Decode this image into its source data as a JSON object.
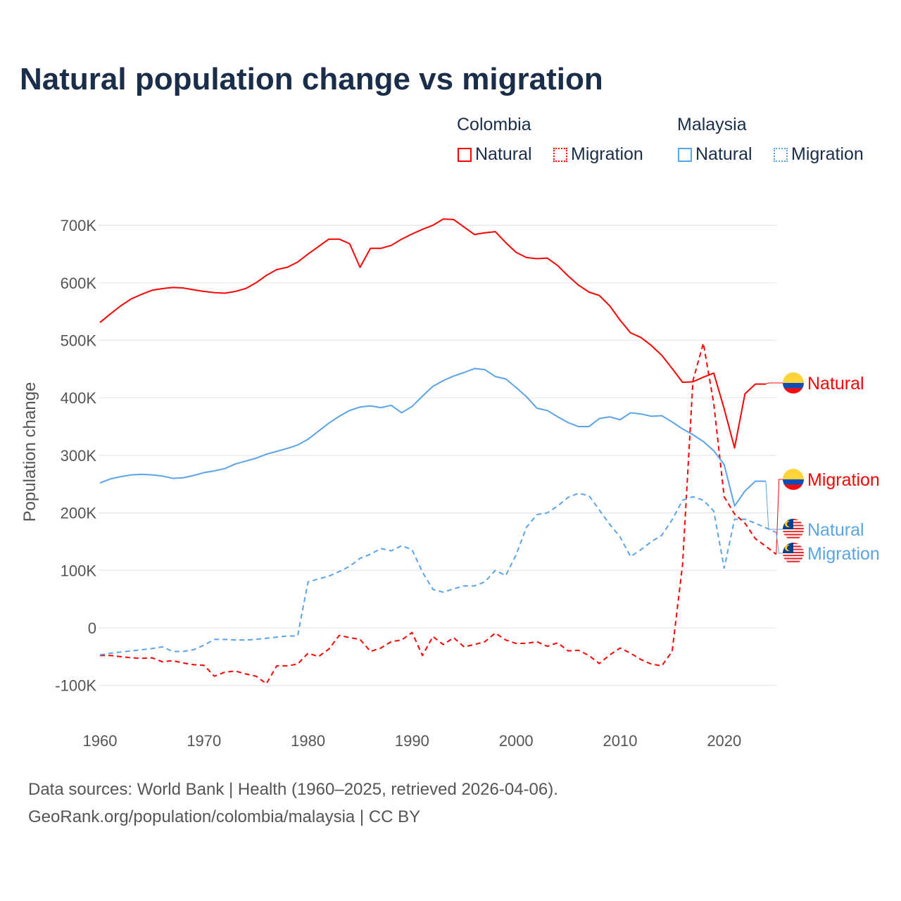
{
  "title": "Natural population change vs migration",
  "legend": {
    "groups": [
      {
        "name": "Colombia",
        "color": "#ff0000",
        "items": [
          "Natural",
          "Migration"
        ]
      },
      {
        "name": "Malaysia",
        "color": "#5ba4e8",
        "items": [
          "Natural",
          "Migration"
        ]
      }
    ]
  },
  "footer": {
    "line1": "Data sources: World Bank | Health (1960–2025, retrieved 2026-04-06).",
    "line2": "GeoRank.org/population/colombia/malaysia | CC BY"
  },
  "chart_data": {
    "type": "line",
    "title": "Natural population change vs migration",
    "xlabel": "",
    "ylabel": "Population change",
    "xlim": [
      1960,
      2025
    ],
    "ylim": [
      -100000,
      700000
    ],
    "x_ticks": [
      "1960",
      "1970",
      "1980",
      "1990",
      "2000",
      "2010",
      "2020"
    ],
    "y_ticks": [
      {
        "v": 700000,
        "label": "700K"
      },
      {
        "v": 600000,
        "label": "600K"
      },
      {
        "v": 500000,
        "label": "500K"
      },
      {
        "v": 400000,
        "label": "400K"
      },
      {
        "v": 300000,
        "label": "300K"
      },
      {
        "v": 200000,
        "label": "200K"
      },
      {
        "v": 100000,
        "label": "100K"
      },
      {
        "v": 0,
        "label": "0"
      },
      {
        "v": -100000,
        "label": "-100K"
      }
    ],
    "grid": true,
    "units": "thousands",
    "series": [
      {
        "name": "Colombia Natural",
        "end_label": "Natural",
        "flag": "colombia",
        "color": "#ff0000",
        "dash": false,
        "start": 1960,
        "values": [
          531,
          546,
          560,
          572,
          580,
          587,
          590,
          592,
          591,
          588,
          585,
          583,
          582,
          585,
          590,
          600,
          613,
          623,
          627,
          636,
          650,
          663,
          676,
          676,
          668,
          627,
          660,
          660,
          665,
          676,
          685,
          693,
          700,
          711,
          710,
          697,
          684,
          687,
          689,
          670,
          653,
          644,
          642,
          643,
          630,
          612,
          596,
          584,
          578,
          560,
          535,
          513,
          505,
          491,
          474,
          451,
          427,
          428,
          436,
          443,
          381,
          313,
          407,
          424,
          424
        ]
      },
      {
        "name": "Colombia Migration",
        "end_label": "Migration",
        "flag": "colombia",
        "color": "#ff0000",
        "dash": true,
        "start": 1960,
        "values": [
          -48,
          -48,
          -50,
          -52,
          -53,
          -52,
          -59,
          -57,
          -61,
          -64,
          -65,
          -84,
          -77,
          -75,
          -80,
          -84,
          -97,
          -66,
          -66,
          -63,
          -44,
          -50,
          -37,
          -13,
          -17,
          -20,
          -41,
          -35,
          -24,
          -21,
          -8,
          -48,
          -15,
          -29,
          -17,
          -33,
          -29,
          -24,
          -9,
          -21,
          -27,
          -27,
          -24,
          -32,
          -26,
          -40,
          -39,
          -48,
          -62,
          -47,
          -35,
          -44,
          -55,
          -63,
          -66,
          -41,
          110,
          430,
          495,
          390,
          228,
          198,
          182,
          155,
          142,
          128
        ]
      },
      {
        "name": "Malaysia Natural",
        "end_label": "Natural",
        "flag": "malaysia",
        "color": "#5ba4e8",
        "dash": false,
        "start": 1960,
        "values": [
          252,
          259,
          263,
          266,
          267,
          266,
          264,
          260,
          261,
          265,
          270,
          273,
          277,
          285,
          290,
          295,
          302,
          307,
          312,
          318,
          328,
          342,
          356,
          368,
          378,
          384,
          386,
          383,
          387,
          374,
          385,
          403,
          420,
          430,
          438,
          444,
          451,
          449,
          437,
          433,
          418,
          402,
          382,
          378,
          367,
          357,
          350,
          350,
          364,
          367,
          362,
          374,
          372,
          368,
          369,
          358,
          346,
          336,
          324,
          308,
          284,
          212,
          238,
          255,
          255
        ]
      },
      {
        "name": "Malaysia Migration",
        "end_label": "Migration",
        "flag": "malaysia",
        "color": "#5ba4e8",
        "dash": true,
        "start": 1960,
        "values": [
          -47,
          -44,
          -42,
          -40,
          -38,
          -36,
          -33,
          -41,
          -41,
          -38,
          -30,
          -20,
          -20,
          -21,
          -21,
          -20,
          -18,
          -16,
          -14,
          -14,
          80,
          85,
          90,
          98,
          107,
          121,
          128,
          138,
          134,
          143,
          136,
          97,
          67,
          62,
          68,
          73,
          73,
          80,
          100,
          91,
          127,
          175,
          197,
          200,
          212,
          227,
          234,
          230,
          205,
          180,
          158,
          124,
          136,
          150,
          161,
          188,
          222,
          228,
          222,
          203,
          104,
          189,
          189,
          182,
          174,
          166
        ]
      }
    ]
  }
}
